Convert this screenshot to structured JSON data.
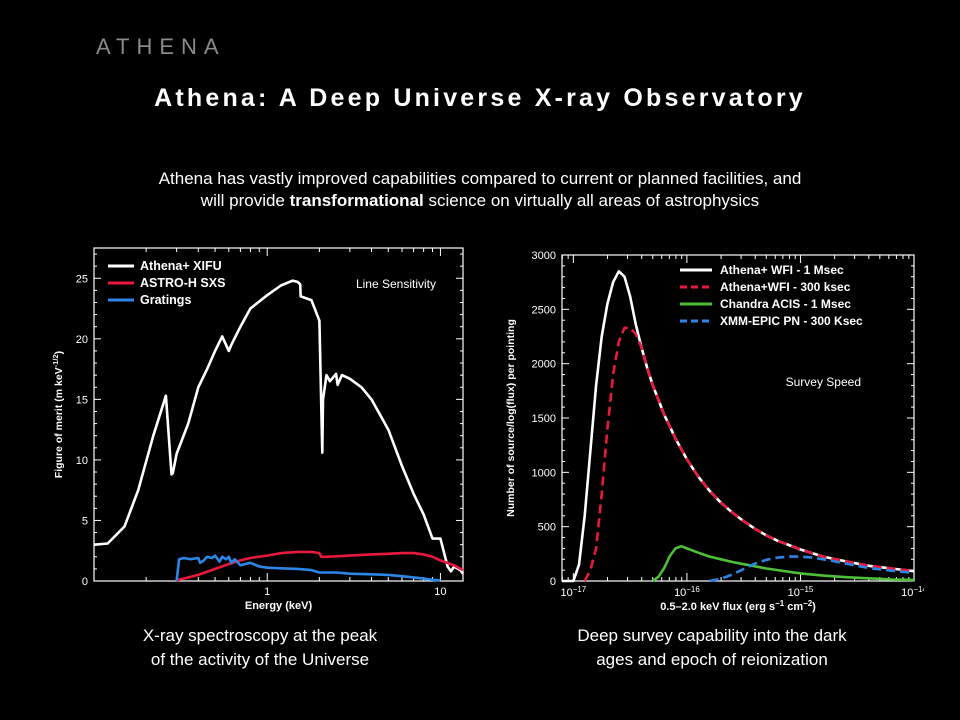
{
  "brand": "ATHENA",
  "title": "Athena: A Deep Universe X-ray Observatory",
  "subtitle": {
    "line1": "Athena has vastly improved capabilities compared to current or planned facilities, and",
    "line2_pre": "will provide ",
    "line2_bold": "transformational",
    "line2_post": " science on virtually all areas of astrophysics"
  },
  "captions": {
    "left": [
      "X-ray spectroscopy at the peak",
      "of the activity of the Universe"
    ],
    "right": [
      "Deep survey capability into the dark",
      "ages and epoch of reionization"
    ]
  },
  "chart_data": [
    {
      "type": "line",
      "annotation": "Line Sensitivity",
      "xlabel": "Energy (keV)",
      "ylabel": "Figure of merit (m keV",
      "ylabel_exp": "-1/2",
      "ylabel_close": ")",
      "xscale": "log",
      "xlim": [
        0.1,
        13.5
      ],
      "ylim": [
        0,
        27.5
      ],
      "xticks": [
        {
          "value": 1,
          "label": "1"
        },
        {
          "value": 10,
          "label": "10"
        }
      ],
      "yticks": [
        0,
        5,
        10,
        15,
        20,
        25
      ],
      "legend_position": "top-left",
      "series": [
        {
          "name": "Athena+ XIFU",
          "color": "#ffffff",
          "x": [
            0.1,
            0.12,
            0.15,
            0.18,
            0.22,
            0.26,
            0.28,
            0.285,
            0.3,
            0.35,
            0.4,
            0.45,
            0.5,
            0.55,
            0.6,
            0.62,
            0.7,
            0.8,
            1.0,
            1.2,
            1.4,
            1.5,
            1.55,
            1.56,
            1.8,
            2.0,
            2.08,
            2.1,
            2.2,
            2.3,
            2.5,
            2.55,
            2.7,
            2.9,
            3.0,
            3.5,
            4.0,
            5.0,
            6.0,
            7.0,
            8.0,
            9.0,
            10.0,
            11.0,
            11.5,
            12.0,
            13.0,
            13.5
          ],
          "y": [
            3.0,
            3.1,
            4.5,
            7.5,
            12,
            15.3,
            8.8,
            8.9,
            10.5,
            13,
            16,
            17.5,
            19,
            20.2,
            19,
            19.5,
            21,
            22.5,
            23.6,
            24.4,
            24.8,
            24.7,
            24.5,
            23.5,
            23.2,
            21.5,
            10.6,
            15,
            17,
            16.5,
            17.1,
            16.2,
            17,
            16.8,
            16.7,
            16,
            15,
            12.5,
            9.5,
            7.2,
            5.5,
            3.5,
            3.5,
            1.2,
            0.8,
            1.2,
            0.9,
            0.6
          ]
        },
        {
          "name": "ASTRO-H SXS",
          "color": "#e8193c",
          "x": [
            0.3,
            0.4,
            0.5,
            0.6,
            0.7,
            0.8,
            1.0,
            1.2,
            1.5,
            1.8,
            2.0,
            2.05,
            2.2,
            3.0,
            4.0,
            5.0,
            6.0,
            7.0,
            8.0,
            9.0,
            10.0,
            12.0,
            13.5
          ],
          "y": [
            0.05,
            0.5,
            1.0,
            1.4,
            1.7,
            1.9,
            2.1,
            2.3,
            2.4,
            2.4,
            2.3,
            2.0,
            2.0,
            2.1,
            2.2,
            2.25,
            2.3,
            2.3,
            2.2,
            2.0,
            1.7,
            1.3,
            0.9
          ]
        },
        {
          "name": "Gratings",
          "color": "#2b86e8",
          "x": [
            0.3,
            0.31,
            0.33,
            0.36,
            0.4,
            0.41,
            0.43,
            0.45,
            0.48,
            0.5,
            0.53,
            0.55,
            0.58,
            0.6,
            0.62,
            0.65,
            0.7,
            0.75,
            0.8,
            0.9,
            1.0,
            1.2,
            1.5,
            1.8,
            2.0,
            2.5,
            3.0,
            4.0,
            5.0,
            6.0,
            7.0,
            8.0,
            9.0,
            10.0
          ],
          "y": [
            0.0,
            1.8,
            1.9,
            1.8,
            1.9,
            1.5,
            1.7,
            2.0,
            1.9,
            2.1,
            1.6,
            2.0,
            1.8,
            2.0,
            1.5,
            1.8,
            1.3,
            1.4,
            1.5,
            1.2,
            1.1,
            1.05,
            1.0,
            0.9,
            0.7,
            0.7,
            0.6,
            0.55,
            0.5,
            0.4,
            0.3,
            0.2,
            0.1,
            0.05
          ]
        }
      ]
    },
    {
      "type": "line",
      "annotation": "Survey Speed",
      "xlabel": "0.5–2.0 keV flux (erg s",
      "xlabel_exp1": "−1",
      "xlabel_mid": " cm",
      "xlabel_exp2": "−2",
      "xlabel_close": ")",
      "ylabel": "Number of source/log(flux) per pointing",
      "xscale": "log",
      "xlim": [
        -17.1,
        -14.0
      ],
      "ylim": [
        0,
        3000
      ],
      "xticks": [
        {
          "value": -17,
          "base": "10",
          "exp": "−17"
        },
        {
          "value": -16,
          "base": "10",
          "exp": "−16"
        },
        {
          "value": -15,
          "base": "10",
          "exp": "−15"
        },
        {
          "value": -14,
          "base": "10",
          "exp": "−14"
        }
      ],
      "yticks": [
        0,
        500,
        1000,
        1500,
        2000,
        2500,
        3000
      ],
      "legend_position": "top-right",
      "series": [
        {
          "name": "Athena+ WFI - 1 Msec",
          "color": "#ffffff",
          "dash": "solid",
          "x": [
            -17.1,
            -17.0,
            -16.95,
            -16.9,
            -16.85,
            -16.8,
            -16.75,
            -16.7,
            -16.65,
            -16.6,
            -16.55,
            -16.5,
            -16.45,
            -16.4,
            -16.35,
            -16.3,
            -16.2,
            -16.1,
            -16.0,
            -15.9,
            -15.8,
            -15.7,
            -15.6,
            -15.5,
            -15.4,
            -15.3,
            -15.2,
            -15.1,
            -15.0,
            -14.8,
            -14.6,
            -14.4,
            -14.2,
            -14.0
          ],
          "y": [
            0,
            0,
            150,
            600,
            1200,
            1800,
            2250,
            2550,
            2750,
            2850,
            2800,
            2620,
            2360,
            2150,
            1960,
            1800,
            1530,
            1310,
            1120,
            960,
            830,
            720,
            630,
            550,
            480,
            420,
            370,
            330,
            290,
            225,
            180,
            140,
            115,
            90
          ]
        },
        {
          "name": "Athena+WFI - 300 ksec",
          "color": "#e8193c",
          "dash": "dashed",
          "x": [
            -16.9,
            -16.85,
            -16.8,
            -16.75,
            -16.7,
            -16.65,
            -16.6,
            -16.55,
            -16.5,
            -16.45,
            -16.4,
            -16.35,
            -16.3,
            -16.2,
            -16.1,
            -16.0,
            -15.9,
            -15.8,
            -15.7,
            -15.6,
            -15.5,
            -15.4,
            -15.3,
            -15.2,
            -15.1,
            -15.0,
            -14.8,
            -14.6,
            -14.4,
            -14.2,
            -14.0
          ],
          "y": [
            0,
            100,
            300,
            800,
            1400,
            1900,
            2200,
            2330,
            2330,
            2270,
            2150,
            1960,
            1800,
            1530,
            1310,
            1120,
            960,
            830,
            720,
            630,
            550,
            480,
            420,
            370,
            330,
            290,
            225,
            180,
            140,
            115,
            90
          ]
        },
        {
          "name": "Chandra ACIS - 1 Msec",
          "color": "#4fbf3a",
          "dash": "solid",
          "x": [
            -16.3,
            -16.25,
            -16.2,
            -16.15,
            -16.1,
            -16.05,
            -16.0,
            -15.9,
            -15.8,
            -15.7,
            -15.6,
            -15.5,
            -15.4,
            -15.3,
            -15.2,
            -15.1,
            -15.0,
            -14.8,
            -14.6,
            -14.4,
            -14.2,
            -14.0
          ],
          "y": [
            0,
            40,
            120,
            230,
            300,
            320,
            300,
            260,
            225,
            200,
            175,
            155,
            135,
            115,
            100,
            85,
            70,
            50,
            35,
            25,
            15,
            10
          ]
        },
        {
          "name": "XMM-EPIC PN - 300 Ksec",
          "color": "#2b86e8",
          "dash": "dashed",
          "x": [
            -15.8,
            -15.7,
            -15.6,
            -15.5,
            -15.4,
            -15.3,
            -15.2,
            -15.1,
            -15.0,
            -14.9,
            -14.8,
            -14.7,
            -14.6,
            -14.5,
            -14.4,
            -14.2,
            -14.0
          ],
          "y": [
            0,
            20,
            60,
            110,
            160,
            195,
            215,
            225,
            225,
            215,
            200,
            180,
            160,
            140,
            120,
            95,
            75
          ]
        }
      ]
    }
  ]
}
